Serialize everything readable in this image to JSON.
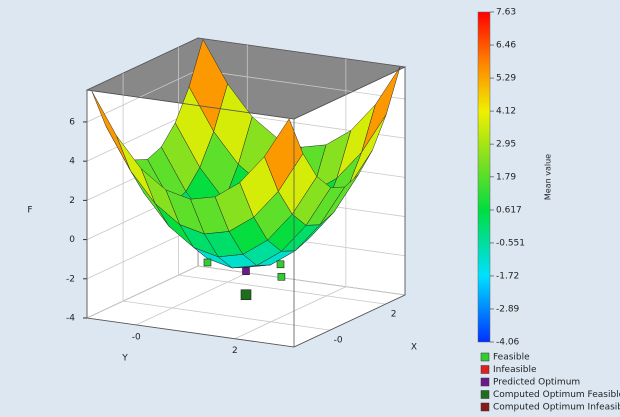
{
  "chart_data": {
    "type": "surface3d",
    "xlabel": "X",
    "ylabel": "Y",
    "zlabel": "F",
    "xlim": [
      -1.3,
      2.7
    ],
    "ylim": [
      -1,
      3.2
    ],
    "zlim": [
      -4,
      7.63
    ],
    "xticks": [
      {
        "value": 0,
        "label": "-0"
      },
      2
    ],
    "yticks": [
      {
        "value": 0,
        "label": "-0"
      },
      2
    ],
    "zticks": [
      -4,
      -2,
      0,
      2,
      4,
      6
    ],
    "surface": {
      "x": [
        -1.3,
        -0.8,
        -0.3,
        0.2,
        0.7,
        1.2,
        1.7,
        2.2,
        2.7
      ],
      "y": [
        -0.9,
        -0.4,
        0.1,
        0.6,
        1.1,
        1.6,
        2.1,
        2.6,
        3.1
      ],
      "z": [
        [
          7.6,
          5.5,
          4,
          3.1,
          2.8,
          3.1,
          4,
          5.5,
          7.6
        ],
        [
          5.5,
          3.4,
          1.9,
          1,
          0.7,
          1,
          1.9,
          3.4,
          5.5
        ],
        [
          4,
          1.9,
          0.4,
          -0.5,
          -0.8,
          -0.5,
          0.4,
          1.9,
          4
        ],
        [
          3.1,
          1,
          -0.5,
          -1.4,
          -1.7,
          -1.4,
          -0.5,
          1,
          3.1
        ],
        [
          2.8,
          0.7,
          -0.8,
          -1.7,
          -2,
          -1.7,
          -0.8,
          0.7,
          2.8
        ],
        [
          3.1,
          1,
          -0.5,
          -1.4,
          -1.7,
          -1.4,
          -0.5,
          1,
          3.1
        ],
        [
          4,
          1.9,
          0.4,
          -0.5,
          -0.8,
          -0.5,
          0.4,
          1.9,
          4
        ],
        [
          5.5,
          3.4,
          1.9,
          1,
          0.7,
          1,
          1.9,
          3.4,
          5.5
        ],
        [
          7.6,
          5.5,
          4,
          3.1,
          2.8,
          3.1,
          4,
          5.5,
          7.6
        ]
      ]
    },
    "colorbar": {
      "label": "Mean value",
      "lim": [
        -4.06,
        7.63
      ],
      "ticks": [
        7.63,
        6.46,
        5.29,
        4.12,
        2.95,
        1.79,
        0.617,
        -0.551,
        -1.72,
        -2.89,
        -4.06
      ]
    },
    "series": [
      {
        "name": "Feasible",
        "color": "#33cc33",
        "x": [
          0.2,
          0.7,
          0.2
        ],
        "y": [
          0.6,
          1.8,
          2.1
        ],
        "z": [
          -1.6,
          -1.6,
          -1.8
        ]
      },
      {
        "name": "Infeasible",
        "color": "#e02020",
        "x": [],
        "y": [],
        "z": []
      },
      {
        "name": "Predicted Optimum",
        "color": "#6a1a8a",
        "x": [
          0.7
        ],
        "y": [
          1.1
        ],
        "z": [
          -2.2
        ]
      },
      {
        "name": "Computed Optimum Feasible",
        "color": "#1d6e1d",
        "x": [
          0.7
        ],
        "y": [
          1.1
        ],
        "z": [
          -3.4
        ]
      },
      {
        "name": "Computed Optimum Infeasible",
        "color": "#8a1a1a",
        "x": [],
        "y": [],
        "z": []
      }
    ]
  }
}
